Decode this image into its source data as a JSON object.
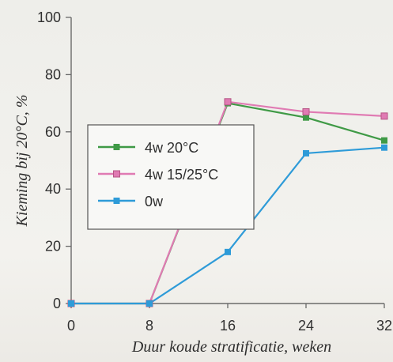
{
  "chart_data": {
    "type": "line",
    "title": "",
    "xlabel": "Duur koude stratificatie, weken",
    "ylabel": "Kieming bij 20°C, %",
    "x": [
      0,
      8,
      16,
      24,
      32
    ],
    "xticks": [
      "0",
      "8",
      "16",
      "24",
      "32"
    ],
    "yticks": [
      "0",
      "20",
      "40",
      "60",
      "80",
      "100"
    ],
    "xlim": [
      0,
      32
    ],
    "ylim": [
      0,
      100
    ],
    "grid": false,
    "legend_position": "left",
    "colors": {
      "series_green": "#3f9a46",
      "series_pink": "#e07bb3",
      "series_blue": "#2e9bd8",
      "axis": "#6a6a6a"
    },
    "series": [
      {
        "name": "4w 20°C",
        "values": [
          0,
          0,
          70,
          65,
          57
        ]
      },
      {
        "name": "4w 15/25°C",
        "values": [
          0,
          0,
          70.5,
          67,
          65.5
        ]
      },
      {
        "name": "0w",
        "values": [
          0,
          0,
          18,
          52.5,
          54.5
        ]
      }
    ]
  }
}
